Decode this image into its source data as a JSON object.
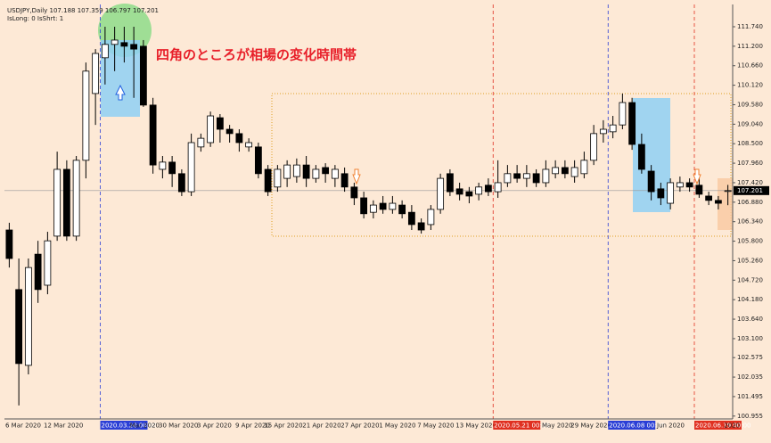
{
  "chart_data": {
    "type": "candlestick",
    "header": "USDJPY,Daily  107.188 107.359 106.797 107.201",
    "subheader": "IsLong: 0 IsShrt: 1",
    "annotation": "四角のところが相場の変化時間帯",
    "categories": [
      "6 Mar 2020",
      null,
      null,
      null,
      "12 Mar 2020",
      null,
      null,
      null,
      null,
      null,
      "2020.03.20 00:00",
      null,
      null,
      "Mar 2020",
      null,
      null,
      "30 Mar 2020",
      null,
      null,
      null,
      "3 Apr 2020",
      null,
      null,
      null,
      "9 Apr 2020",
      null,
      null,
      "15 Apr 2020",
      null,
      null,
      null,
      "21 Apr 2020",
      null,
      null,
      null,
      "27 Apr 2020",
      null,
      null,
      null,
      "1 May 2020",
      null,
      null,
      null,
      "7 May 2020",
      null,
      null,
      null,
      "13 May 2020",
      null,
      null,
      null,
      "2020.05.21 00:00",
      null,
      null,
      null,
      null,
      "May 2020",
      null,
      null,
      "29 May 2020",
      null,
      null,
      null,
      "2020.06.08 00:00",
      null,
      null,
      null,
      null,
      "Jun 2020",
      null,
      null,
      null,
      "2020.06.19 00:00",
      null,
      null,
      "2020"
    ],
    "open": [
      106.11,
      104.46,
      102.36,
      105.44,
      104.58,
      105.94,
      107.79,
      105.94,
      108.04,
      109.89,
      110.88,
      111.25,
      111.3,
      111.25,
      111.2,
      109.57,
      107.79,
      107.99,
      107.67,
      107.17,
      108.41,
      108.53,
      109.22,
      108.9,
      108.78,
      108.41,
      108.41,
      107.79,
      107.3,
      107.54,
      107.59,
      107.91,
      107.54,
      107.84,
      107.54,
      107.67,
      107.3,
      107.0,
      106.6,
      106.85,
      106.68,
      106.8,
      106.6,
      106.31,
      106.26,
      106.68,
      107.67,
      107.25,
      107.17,
      107.1,
      107.35,
      107.17,
      107.42,
      107.67,
      107.54,
      107.67,
      107.42,
      107.67,
      107.84,
      107.59,
      107.67,
      108.04,
      108.78,
      108.83,
      109.02,
      109.64,
      108.48,
      107.74,
      107.25,
      106.85,
      107.3,
      107.42,
      107.35,
      107.05,
      106.93,
      107.188
    ],
    "high": [
      106.31,
      105.32,
      105.32,
      105.81,
      106.06,
      108.28,
      108.04,
      108.16,
      110.75,
      111.12,
      111.74,
      111.74,
      111.74,
      111.74,
      111.37,
      109.77,
      108.16,
      108.16,
      107.79,
      108.78,
      108.78,
      109.39,
      109.32,
      109.02,
      108.9,
      108.65,
      108.53,
      107.91,
      107.91,
      108.04,
      108.09,
      108.16,
      107.91,
      107.96,
      107.91,
      107.84,
      107.42,
      107.17,
      106.93,
      107.05,
      107.05,
      106.93,
      106.8,
      106.43,
      106.8,
      107.67,
      107.79,
      107.42,
      107.3,
      107.42,
      107.54,
      108.04,
      107.91,
      107.91,
      107.91,
      107.79,
      108.04,
      108.04,
      108.04,
      108.04,
      108.28,
      109.02,
      109.15,
      109.27,
      109.89,
      109.77,
      108.78,
      107.91,
      107.42,
      107.54,
      107.59,
      107.54,
      107.54,
      107.17,
      107.05,
      107.359
    ],
    "low": [
      105.07,
      101.25,
      102.11,
      104.09,
      104.33,
      105.81,
      105.81,
      105.81,
      107.54,
      109.02,
      110.14,
      110.51,
      110.75,
      109.77,
      109.52,
      107.67,
      107.54,
      107.3,
      107.05,
      107.05,
      108.28,
      108.41,
      108.53,
      108.53,
      108.28,
      108.28,
      107.54,
      107.05,
      107.17,
      107.3,
      107.42,
      107.3,
      107.42,
      107.42,
      107.3,
      107.17,
      106.8,
      106.43,
      106.43,
      106.56,
      106.56,
      106.43,
      106.11,
      106.01,
      106.11,
      106.56,
      107.05,
      106.93,
      106.85,
      106.93,
      107.05,
      107.0,
      107.3,
      107.42,
      107.3,
      107.3,
      107.3,
      107.54,
      107.54,
      107.42,
      107.54,
      107.91,
      108.53,
      108.65,
      108.9,
      108.33,
      107.67,
      106.93,
      106.8,
      106.68,
      107.17,
      107.17,
      107.0,
      106.8,
      106.68,
      106.797
    ],
    "close": [
      105.32,
      102.41,
      105.07,
      104.46,
      105.81,
      107.79,
      105.94,
      108.04,
      110.51,
      111.0,
      111.25,
      111.37,
      111.2,
      111.12,
      109.57,
      107.91,
      107.99,
      107.67,
      107.17,
      108.53,
      108.65,
      109.27,
      108.9,
      108.78,
      108.53,
      108.53,
      107.67,
      107.17,
      107.79,
      107.91,
      107.91,
      107.54,
      107.79,
      107.67,
      107.79,
      107.3,
      107.0,
      106.56,
      106.8,
      106.68,
      106.85,
      106.56,
      106.26,
      106.11,
      106.68,
      107.54,
      107.17,
      107.1,
      107.05,
      107.3,
      107.17,
      107.42,
      107.67,
      107.54,
      107.67,
      107.42,
      107.79,
      107.84,
      107.67,
      107.84,
      108.04,
      108.78,
      108.9,
      109.02,
      109.64,
      108.48,
      107.79,
      107.17,
      107.0,
      107.42,
      107.42,
      107.3,
      107.1,
      106.93,
      106.85,
      107.201
    ],
    "last_price": {
      "value": 107.201,
      "label": "107.201"
    },
    "ylim": [
      100.876,
      112.357
    ],
    "yticks": [
      {
        "value": 111.74,
        "label": "111.740"
      },
      {
        "value": 111.2,
        "label": "111.200"
      },
      {
        "value": 110.66,
        "label": "110.660"
      },
      {
        "value": 110.12,
        "label": "110.120"
      },
      {
        "value": 109.58,
        "label": "109.580"
      },
      {
        "value": 109.04,
        "label": "109.040"
      },
      {
        "value": 108.5,
        "label": "108.500"
      },
      {
        "value": 107.96,
        "label": "107.960"
      },
      {
        "value": 107.42,
        "label": "107.420"
      },
      {
        "value": 106.88,
        "label": "106.880"
      },
      {
        "value": 106.34,
        "label": "106.340"
      },
      {
        "value": 105.8,
        "label": "105.800"
      },
      {
        "value": 105.26,
        "label": "105.260"
      },
      {
        "value": 104.72,
        "label": "104.720"
      },
      {
        "value": 104.18,
        "label": "104.180"
      },
      {
        "value": 103.64,
        "label": "103.640"
      },
      {
        "value": 103.1,
        "label": "103.100"
      },
      {
        "value": 102.575,
        "label": "102.575"
      },
      {
        "value": 102.035,
        "label": "102.035"
      },
      {
        "value": 101.495,
        "label": "101.495"
      },
      {
        "value": 100.955,
        "label": "100.955"
      }
    ],
    "bull_color": "#ffffff",
    "bear_color": "#000000",
    "time_markers": [
      {
        "category": 10,
        "color": "#2b3fd6"
      },
      {
        "category": 51,
        "color": "#e03020"
      },
      {
        "category": 63,
        "color": "#2b3fd6"
      },
      {
        "category": 72,
        "color": "#e03020"
      }
    ]
  }
}
